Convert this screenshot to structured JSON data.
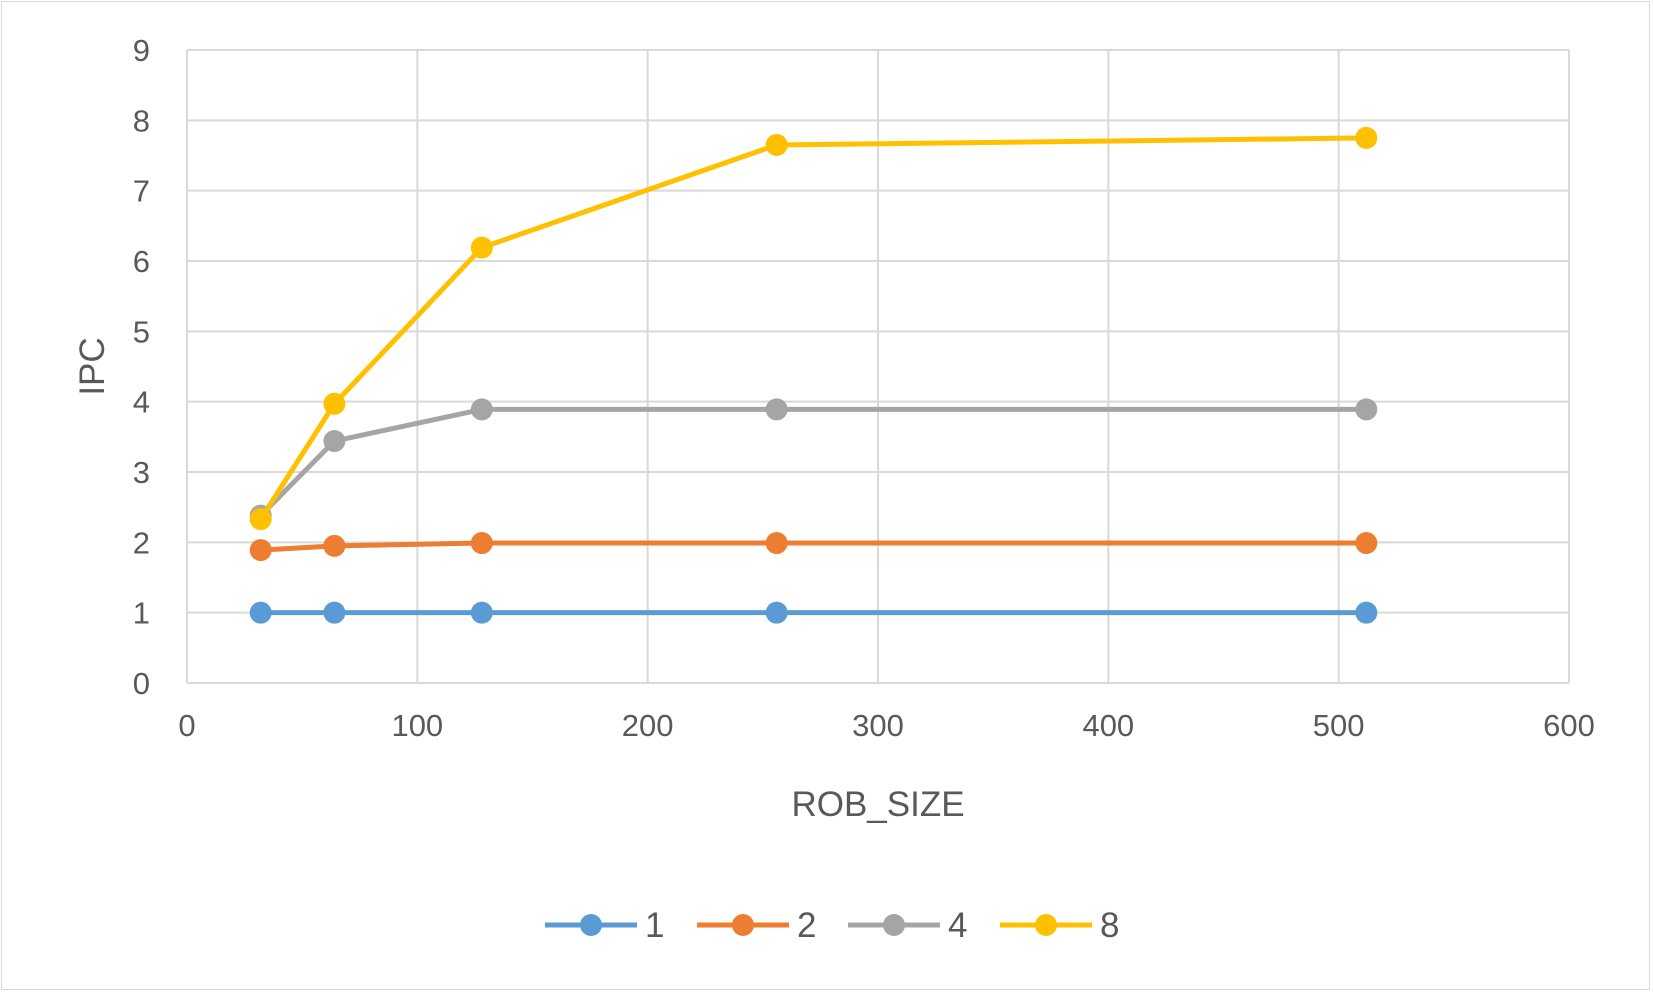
{
  "chart_data": {
    "type": "line",
    "title": "",
    "xlabel": "ROB_SIZE",
    "ylabel": "IPC",
    "xlim": [
      0,
      600
    ],
    "ylim": [
      0,
      9
    ],
    "xticks": [
      0,
      100,
      200,
      300,
      400,
      500,
      600
    ],
    "yticks": [
      0,
      1,
      2,
      3,
      4,
      5,
      6,
      7,
      8,
      9
    ],
    "grid": true,
    "legend_position": "bottom",
    "x": [
      32,
      64,
      128,
      256,
      512
    ],
    "series": [
      {
        "name": "1",
        "color": "#5b9bd5",
        "values": [
          1.0,
          1.0,
          1.0,
          1.0,
          1.0
        ]
      },
      {
        "name": "2",
        "color": "#ed7d31",
        "values": [
          1.89,
          1.95,
          1.99,
          1.99,
          1.99
        ]
      },
      {
        "name": "4",
        "color": "#a5a5a5",
        "values": [
          2.38,
          3.44,
          3.89,
          3.89,
          3.89
        ]
      },
      {
        "name": "8",
        "color": "#ffc000",
        "values": [
          2.33,
          3.97,
          6.19,
          7.65,
          7.75
        ]
      }
    ]
  }
}
